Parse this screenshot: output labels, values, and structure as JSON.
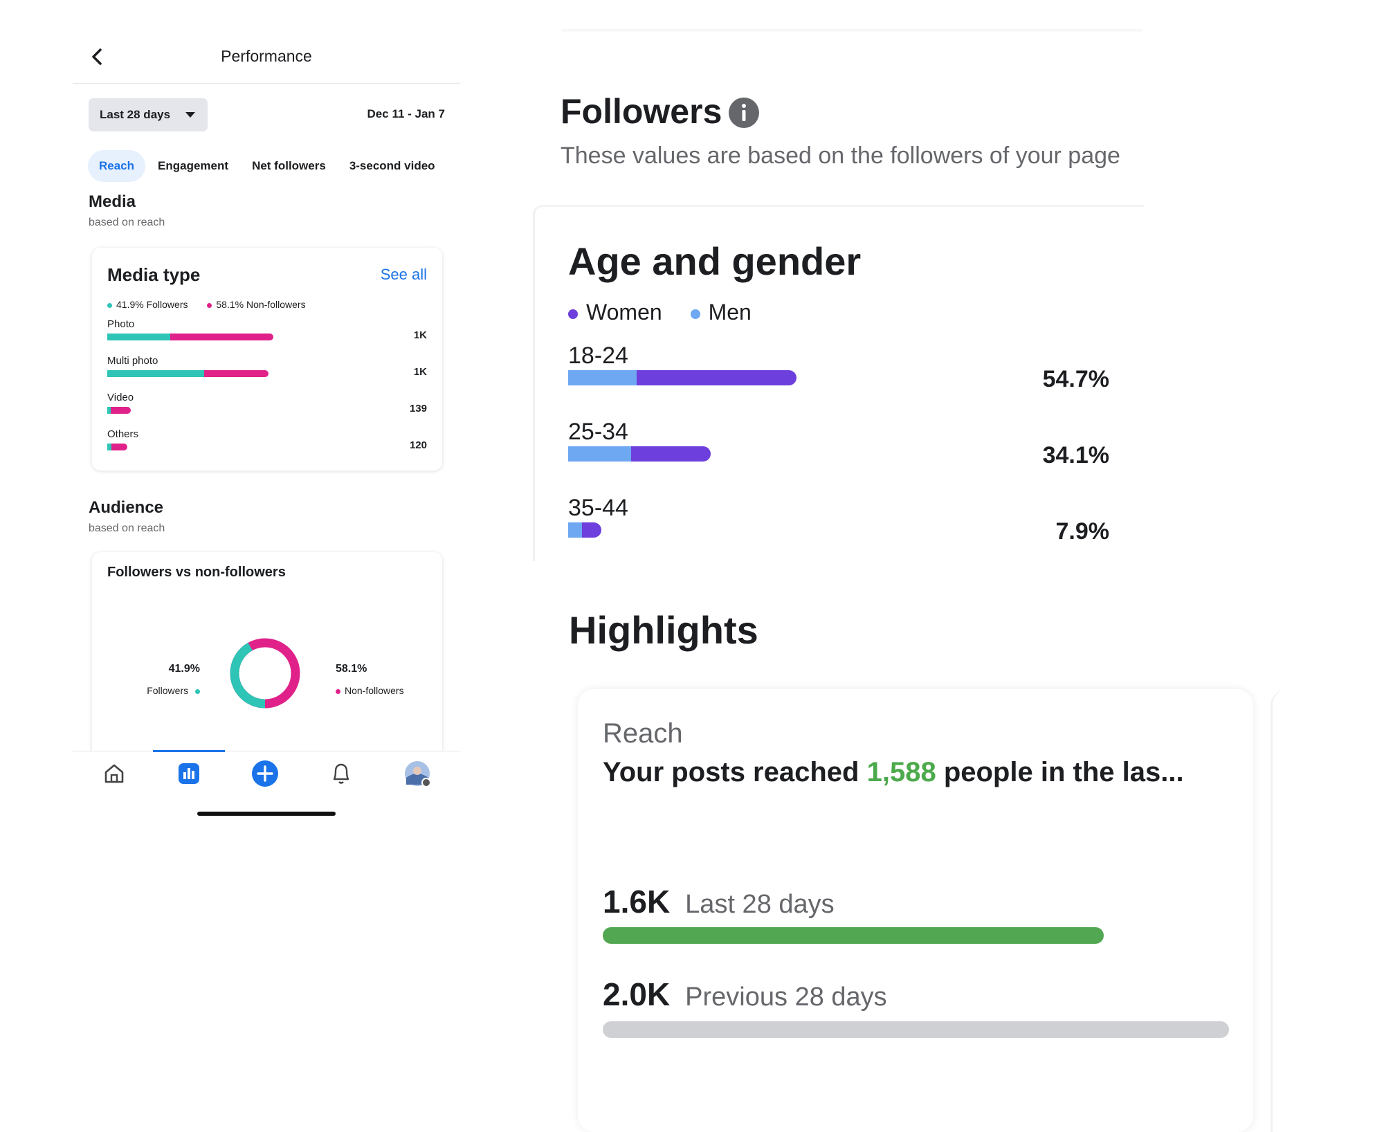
{
  "performance": {
    "title": "Performance",
    "range_button": "Last 28 days",
    "date_range": "Dec 11 - Jan 7",
    "tabs": [
      "Reach",
      "Engagement",
      "Net followers",
      "3-second video"
    ],
    "media_section": {
      "title": "Media",
      "subtitle": "based on reach"
    },
    "media_type_card": {
      "title": "Media type",
      "see_all": "See all",
      "legend_followers": "41.9%  Followers",
      "legend_non_followers": "58.1%  Non-followers",
      "rows": [
        {
          "label": "Photo",
          "value": "1K",
          "followers_share": 0.38,
          "total_share": 1.0
        },
        {
          "label": "Multi photo",
          "value": "1K",
          "followers_share": 0.6,
          "total_share": 0.97
        },
        {
          "label": "Video",
          "value": "139",
          "followers_share": 0.15,
          "total_share": 0.14
        },
        {
          "label": "Others",
          "value": "120",
          "followers_share": 0.2,
          "total_share": 0.12
        }
      ]
    },
    "audience_section": {
      "title": "Audience",
      "subtitle": "based on reach"
    },
    "followers_card": {
      "title": "Followers vs non-followers",
      "followers_pct": "41.9%",
      "followers_label": "Followers",
      "non_followers_pct": "58.1%",
      "non_followers_label": "Non-followers",
      "followers_fraction": 0.419
    },
    "bottom_nav": [
      "home-icon",
      "insights-icon",
      "create-icon",
      "notifications-icon",
      "profile-avatar"
    ]
  },
  "followers_panel": {
    "title": "Followers",
    "description": "These values are based on the followers of your page"
  },
  "age_gender": {
    "title": "Age and gender",
    "legend_women": "Women",
    "legend_men": "Men",
    "rows": [
      {
        "label": "18-24",
        "value": "54.7%",
        "men_fraction": 0.3,
        "total_fraction": 1.0
      },
      {
        "label": "25-34",
        "value": "34.1%",
        "men_fraction": 0.44,
        "total_fraction": 0.624
      },
      {
        "label": "35-44",
        "value": "7.9%",
        "men_fraction": 0.42,
        "total_fraction": 0.144
      }
    ]
  },
  "highlights": {
    "title": "Highlights",
    "card_label": "Reach",
    "sentence_prefix": "Your posts reached ",
    "sentence_number": "1,588",
    "sentence_suffix": " people in the las...",
    "current_value": "1.6K",
    "current_label": "Last 28 days",
    "current_fraction": 0.8,
    "previous_value": "2.0K",
    "previous_label": "Previous 28 days",
    "previous_fraction": 1.0
  },
  "colors": {
    "teal": "#2ec4b6",
    "pink": "#e0218a",
    "purple": "#6d3fdc",
    "blue": "#6ea8f2",
    "green": "#52a852",
    "gray": "#cfd0d4",
    "accent": "#1a73e8"
  }
}
